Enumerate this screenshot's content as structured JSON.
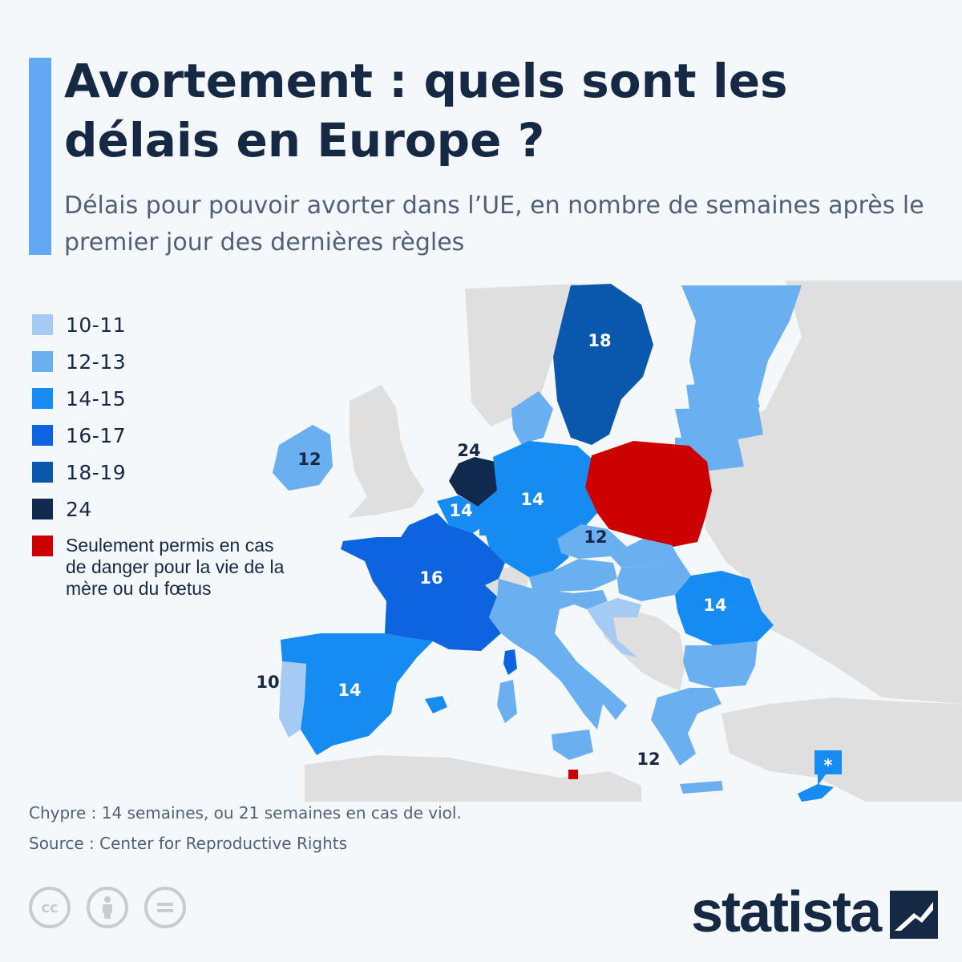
{
  "header": {
    "title": "Avortement : quels sont les délais en Europe ?",
    "subtitle": "Délais pour pouvoir avorter dans l’UE, en nombre de semaines après le premier jour des dernières règles"
  },
  "colors": {
    "10-11": "#a3cbf4",
    "12-13": "#6aaff0",
    "14-15": "#168cf2",
    "16-17": "#0d64de",
    "18-19": "#0a58ae",
    "24": "#0f2a4d",
    "danger_only": "#cc0000",
    "non_eu": "#dfdfdf",
    "background": "#f5f8fb"
  },
  "legend": {
    "items": [
      {
        "label": "10-11",
        "color": "#a3cbf4"
      },
      {
        "label": "12-13",
        "color": "#6aaff0"
      },
      {
        "label": "14-15",
        "color": "#168cf2"
      },
      {
        "label": "16-17",
        "color": "#0d64de"
      },
      {
        "label": "18-19",
        "color": "#0a58ae"
      },
      {
        "label": "24",
        "color": "#0f2a4d"
      },
      {
        "label": "Seulement permis en cas de danger pour la vie de la mère ou du fœtus",
        "color": "#cc0000"
      }
    ]
  },
  "map": {
    "labels": {
      "sweden": "18",
      "ireland": "12",
      "netherlands": "24",
      "belgium": "14",
      "germany": "14",
      "czechia": "12",
      "france": "16",
      "romania": "14",
      "portugal": "10",
      "spain": "14",
      "greece": "12",
      "cyprus": "*"
    }
  },
  "footer": {
    "note": "Chypre : 14 semaines, ou 21 semaines en cas de viol.",
    "source": "Source : Center for Reproductive Rights",
    "brand": "statista"
  },
  "license_icons": [
    "cc-icon",
    "attribution-icon",
    "no-derivatives-icon"
  ]
}
